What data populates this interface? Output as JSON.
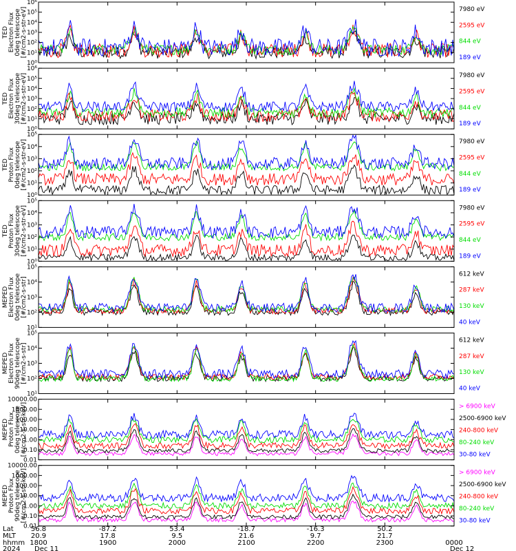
{
  "chart_data": [
    {
      "type": "line",
      "ylabel_lines": [
        "TED",
        "Electron Flux",
        "0deg telescope",
        "[#/cm2-s-str-eV]"
      ],
      "yscale": "log",
      "ylim_exp": [
        0,
        6
      ],
      "yticks": [
        {
          "exp": 0,
          "label": "10⁰"
        },
        {
          "exp": 1,
          "label": "10¹"
        },
        {
          "exp": 2,
          "label": "10²"
        },
        {
          "exp": 3,
          "label": "10³"
        },
        {
          "exp": 4,
          "label": "10⁴"
        },
        {
          "exp": 5,
          "label": "10⁵"
        },
        {
          "exp": 6,
          "label": "10⁶"
        }
      ],
      "series": [
        {
          "name": "7980 eV",
          "color": "#000000",
          "level_exp": 1.0,
          "spread": 0.6
        },
        {
          "name": "2595 eV",
          "color": "#ff0000",
          "level_exp": 1.2,
          "spread": 0.7
        },
        {
          "name": "844 eV",
          "color": "#00dd00",
          "level_exp": 1.3,
          "spread": 0.5
        },
        {
          "name": "189 eV",
          "color": "#0000ff",
          "level_exp": 1.5,
          "spread": 0.9
        }
      ]
    },
    {
      "type": "line",
      "ylabel_lines": [
        "TED",
        "Electron Flux",
        "30deg telescope",
        "[#/cm2-s-str-eV]"
      ],
      "yscale": "log",
      "ylim_exp": [
        0,
        6
      ],
      "yticks": [
        {
          "exp": 0,
          "label": "10⁰"
        },
        {
          "exp": 1,
          "label": "10¹"
        },
        {
          "exp": 2,
          "label": "10²"
        },
        {
          "exp": 3,
          "label": "10³"
        },
        {
          "exp": 4,
          "label": "10⁴"
        },
        {
          "exp": 5,
          "label": "10⁵"
        },
        {
          "exp": 6,
          "label": "10⁶"
        }
      ],
      "series": [
        {
          "name": "7980 eV",
          "color": "#000000",
          "level_exp": 1.0,
          "spread": 0.6
        },
        {
          "name": "2595 eV",
          "color": "#ff0000",
          "level_exp": 1.3,
          "spread": 0.6
        },
        {
          "name": "844 eV",
          "color": "#00dd00",
          "level_exp": 1.6,
          "spread": 0.5
        },
        {
          "name": "189 eV",
          "color": "#0000ff",
          "level_exp": 2.2,
          "spread": 0.5
        }
      ]
    },
    {
      "type": "line",
      "ylabel_lines": [
        "TED",
        "Proton Flux",
        "0deg telescope",
        "[#/cm2-s-str-eV]"
      ],
      "yscale": "log",
      "ylim_exp": [
        0,
        5
      ],
      "yticks": [
        {
          "exp": 0,
          "label": "10⁰"
        },
        {
          "exp": 1,
          "label": "10¹"
        },
        {
          "exp": 2,
          "label": "10²"
        },
        {
          "exp": 3,
          "label": "10³"
        },
        {
          "exp": 4,
          "label": "10⁴"
        },
        {
          "exp": 5,
          "label": "10⁵"
        }
      ],
      "series": [
        {
          "name": "7980 eV",
          "color": "#000000",
          "level_exp": 0.4,
          "spread": 0.4
        },
        {
          "name": "2595 eV",
          "color": "#ff0000",
          "level_exp": 1.3,
          "spread": 0.5
        },
        {
          "name": "844 eV",
          "color": "#00dd00",
          "level_exp": 2.3,
          "spread": 0.3
        },
        {
          "name": "189 eV",
          "color": "#0000ff",
          "level_exp": 2.6,
          "spread": 0.5
        }
      ]
    },
    {
      "type": "line",
      "ylabel_lines": [
        "TED",
        "Proton Flux",
        "30deg telescope",
        "[#/cm2-s-str-eV]"
      ],
      "yscale": "log",
      "ylim_exp": [
        0,
        5
      ],
      "yticks": [
        {
          "exp": 0,
          "label": "10⁰"
        },
        {
          "exp": 1,
          "label": "10¹"
        },
        {
          "exp": 2,
          "label": "10²"
        },
        {
          "exp": 3,
          "label": "10³"
        },
        {
          "exp": 4,
          "label": "10⁴"
        },
        {
          "exp": 5,
          "label": "10⁵"
        }
      ],
      "series": [
        {
          "name": "7980 eV",
          "color": "#000000",
          "level_exp": 0.3,
          "spread": 0.3
        },
        {
          "name": "2595 eV",
          "color": "#ff0000",
          "level_exp": 0.9,
          "spread": 0.5
        },
        {
          "name": "844 eV",
          "color": "#00dd00",
          "level_exp": 2.0,
          "spread": 0.3
        },
        {
          "name": "189 eV",
          "color": "#0000ff",
          "level_exp": 2.4,
          "spread": 0.5
        }
      ]
    },
    {
      "type": "line",
      "ylabel_lines": [
        "MEPED",
        "Electron Flux",
        "0deg telescope",
        "[#/cm2-s-str]"
      ],
      "yscale": "log",
      "ylim_exp": [
        1,
        5
      ],
      "yticks": [
        {
          "exp": 1,
          "label": "10¹"
        },
        {
          "exp": 2,
          "label": "10²"
        },
        {
          "exp": 3,
          "label": "10³"
        },
        {
          "exp": 4,
          "label": "10⁴"
        },
        {
          "exp": 5,
          "label": "10⁵"
        }
      ],
      "series": [
        {
          "name": "612 keV",
          "color": "#000000",
          "level_exp": 2.0,
          "spread": 0.2
        },
        {
          "name": "287 keV",
          "color": "#ff0000",
          "level_exp": 2.1,
          "spread": 0.2
        },
        {
          "name": "130 keV",
          "color": "#00dd00",
          "level_exp": 2.2,
          "spread": 0.2
        },
        {
          "name": "40 keV",
          "color": "#0000ff",
          "level_exp": 2.3,
          "spread": 0.3
        }
      ]
    },
    {
      "type": "line",
      "ylabel_lines": [
        "MEPED",
        "Electron Flux",
        "90deg telescope",
        "[#/cm2-s-str]"
      ],
      "yscale": "log",
      "ylim_exp": [
        1,
        5
      ],
      "yticks": [
        {
          "exp": 1,
          "label": "10¹"
        },
        {
          "exp": 2,
          "label": "10²"
        },
        {
          "exp": 3,
          "label": "10³"
        },
        {
          "exp": 4,
          "label": "10⁴"
        },
        {
          "exp": 5,
          "label": "10⁵"
        }
      ],
      "series": [
        {
          "name": "612 keV",
          "color": "#000000",
          "level_exp": 2.0,
          "spread": 0.2
        },
        {
          "name": "287 keV",
          "color": "#ff0000",
          "level_exp": 2.1,
          "spread": 0.2
        },
        {
          "name": "130 keV",
          "color": "#00dd00",
          "level_exp": 2.0,
          "spread": 0.2
        },
        {
          "name": "40 keV",
          "color": "#0000ff",
          "level_exp": 2.3,
          "spread": 0.3
        }
      ]
    },
    {
      "type": "line",
      "ylabel_lines": [
        "MEPED",
        "Proton Flux",
        "0deg telescope",
        "[#/cm2-s-str-keV]"
      ],
      "yscale": "log",
      "ylim_exp": [
        -2,
        4
      ],
      "yticks": [
        {
          "exp": -2,
          "label": "0.01"
        },
        {
          "exp": -1,
          "label": "0.10"
        },
        {
          "exp": 0,
          "label": "1.00"
        },
        {
          "exp": 1,
          "label": "10.00"
        },
        {
          "exp": 2,
          "label": "100.00"
        },
        {
          "exp": 3,
          "label": "1000.00"
        },
        {
          "exp": 4,
          "label": "10000.00"
        }
      ],
      "series": [
        {
          "name": "> 6900 keV",
          "color": "#ff00ff",
          "level_exp": -1.4,
          "spread": 0.2
        },
        {
          "name": "2500-6900 keV",
          "color": "#000000",
          "level_exp": -1.1,
          "spread": 0.2
        },
        {
          "name": "240-800 keV",
          "color": "#ff0000",
          "level_exp": -0.6,
          "spread": 0.3
        },
        {
          "name": "80-240 keV",
          "color": "#00dd00",
          "level_exp": 0.0,
          "spread": 0.3
        },
        {
          "name": "30-80 keV",
          "color": "#0000ff",
          "level_exp": 0.5,
          "spread": 0.4
        }
      ]
    },
    {
      "type": "line",
      "ylabel_lines": [
        "MEPED",
        "Proton Flux",
        "90deg telescope",
        "[#/cm2-s-str-keV]"
      ],
      "yscale": "log",
      "ylim_exp": [
        -2,
        4
      ],
      "yticks": [
        {
          "exp": -2,
          "label": "0.01"
        },
        {
          "exp": -1,
          "label": "0.10"
        },
        {
          "exp": 0,
          "label": "1.00"
        },
        {
          "exp": 1,
          "label": "10.00"
        },
        {
          "exp": 2,
          "label": "100.00"
        },
        {
          "exp": 3,
          "label": "1000.00"
        },
        {
          "exp": 4,
          "label": "10000.00"
        }
      ],
      "series": [
        {
          "name": "> 6900 keV",
          "color": "#ff00ff",
          "level_exp": -1.4,
          "spread": 0.2
        },
        {
          "name": "2500-6900 keV",
          "color": "#000000",
          "level_exp": -1.1,
          "spread": 0.2
        },
        {
          "name": "240-800 keV",
          "color": "#ff0000",
          "level_exp": -0.5,
          "spread": 0.3
        },
        {
          "name": "80-240 keV",
          "color": "#00dd00",
          "level_exp": 0.0,
          "spread": 0.3
        },
        {
          "name": "30-80 keV",
          "color": "#0000ff",
          "level_exp": 0.8,
          "spread": 0.4
        }
      ]
    }
  ],
  "time_axis": {
    "row_labels": [
      "Lat",
      "MLT",
      "hhmm",
      "2024"
    ],
    "ticks": [
      {
        "hour": 18.0,
        "lat": "56.8",
        "mlt": "20.9",
        "hhmm": "1800",
        "date": "Dec 11"
      },
      {
        "hour": 19.0,
        "lat": "-87.2",
        "mlt": "17.8",
        "hhmm": "1900",
        "date": ""
      },
      {
        "hour": 20.0,
        "lat": "53.4",
        "mlt": "9.5",
        "hhmm": "2000",
        "date": ""
      },
      {
        "hour": 21.0,
        "lat": "-18.7",
        "mlt": "21.6",
        "hhmm": "2100",
        "date": ""
      },
      {
        "hour": 22.0,
        "lat": "-16.3",
        "mlt": "9.7",
        "hhmm": "2200",
        "date": ""
      },
      {
        "hour": 23.0,
        "lat": "50.2",
        "mlt": "21.7",
        "hhmm": "2300",
        "date": ""
      },
      {
        "hour": 24.0,
        "lat": "",
        "mlt": "",
        "hhmm": "0000",
        "date": "Dec 12"
      }
    ],
    "xlim_hours": [
      18.0,
      24.0
    ],
    "events": [
      {
        "hour": 18.45,
        "width": 0.06,
        "amp": 3.0
      },
      {
        "hour": 19.38,
        "width": 0.08,
        "amp": 3.2
      },
      {
        "hour": 20.28,
        "width": 0.07,
        "amp": 3.0
      },
      {
        "hour": 20.93,
        "width": 0.07,
        "amp": 2.6
      },
      {
        "hour": 21.85,
        "width": 0.07,
        "amp": 2.8
      },
      {
        "hour": 22.55,
        "width": 0.09,
        "amp": 3.4
      },
      {
        "hour": 23.45,
        "width": 0.07,
        "amp": 2.4
      }
    ]
  }
}
